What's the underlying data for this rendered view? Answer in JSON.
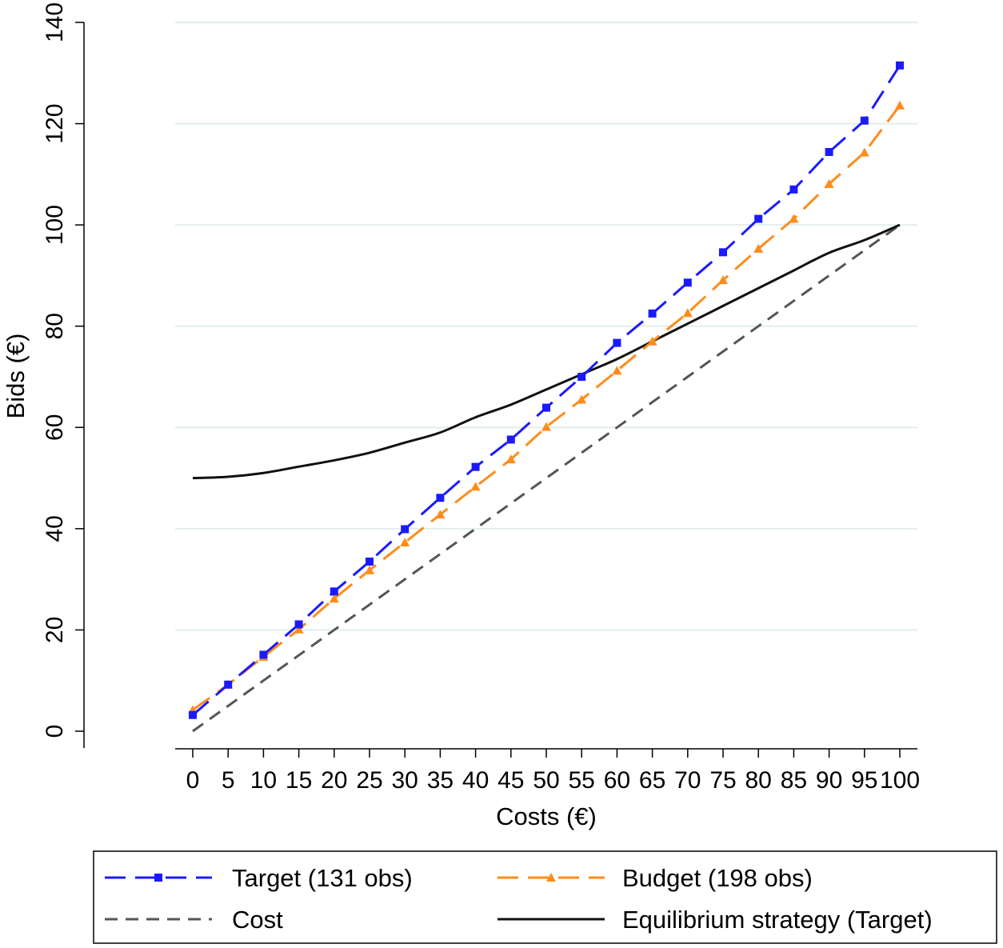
{
  "chart_data": {
    "type": "line",
    "title": "",
    "xlabel": "Costs (€)",
    "ylabel": "Bids (€)",
    "xlim": [
      0,
      100
    ],
    "ylim": [
      0,
      140
    ],
    "x_ticks": [
      0,
      5,
      10,
      15,
      20,
      25,
      30,
      35,
      40,
      45,
      50,
      55,
      60,
      65,
      70,
      75,
      80,
      85,
      90,
      95,
      100
    ],
    "x_tick_labels": [
      "0",
      "5",
      "10",
      "15",
      "20",
      "25",
      "30",
      "35",
      "40",
      "45",
      "50",
      "55",
      "60",
      "65",
      "70",
      "75",
      "80",
      "85",
      "90",
      "95",
      "100"
    ],
    "y_ticks": [
      0,
      20,
      40,
      60,
      80,
      100,
      120,
      140
    ],
    "y_tick_labels": [
      "0",
      "20",
      "40",
      "60",
      "80",
      "100",
      "120",
      "140"
    ],
    "grid": "horizontal",
    "legend_position": "bottom",
    "x": [
      0,
      5,
      10,
      15,
      20,
      25,
      30,
      35,
      40,
      45,
      50,
      55,
      60,
      65,
      70,
      75,
      80,
      85,
      90,
      95,
      100
    ],
    "series": [
      {
        "name": "Target (131 obs)",
        "color": "#1a1aff",
        "style": "dashed",
        "marker": "square",
        "values": [
          3.2,
          9.2,
          15.1,
          21.1,
          27.6,
          33.5,
          39.9,
          46.1,
          52.2,
          57.6,
          63.9,
          70.0,
          76.7,
          82.5,
          88.6,
          94.6,
          101.2,
          107.0,
          114.4,
          120.6,
          131.5
        ]
      },
      {
        "name": "Budget (198 obs)",
        "color": "#ff8c1a",
        "style": "dashed",
        "marker": "triangle",
        "values": [
          4.2,
          9.2,
          14.7,
          20.1,
          26.2,
          31.8,
          37.3,
          42.8,
          48.3,
          53.7,
          60.1,
          65.5,
          71.2,
          77.0,
          82.6,
          89.1,
          95.3,
          101.2,
          108.1,
          114.3,
          123.6
        ]
      },
      {
        "name": "Cost",
        "color": "#555555",
        "style": "dashed",
        "marker": "none",
        "values": [
          0,
          5,
          10,
          15,
          20,
          25,
          30,
          35,
          40,
          45,
          50,
          55,
          60,
          65,
          70,
          75,
          80,
          85,
          90,
          95,
          100
        ]
      },
      {
        "name": "Equilibrium strategy (Target)",
        "color": "#111111",
        "style": "solid",
        "marker": "none",
        "values": [
          50.0,
          50.25,
          51.0,
          52.25,
          53.5,
          55.0,
          57.0,
          59.0,
          62.0,
          64.5,
          67.5,
          70.5,
          73.5,
          77.0,
          80.5,
          84.0,
          87.5,
          91.0,
          94.5,
          97.0,
          100.0
        ]
      }
    ]
  }
}
